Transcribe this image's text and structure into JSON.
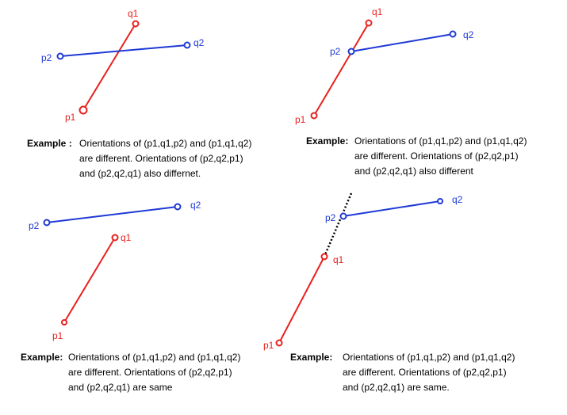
{
  "panels": [
    {
      "labels": {
        "p1": "p1",
        "q1": "q1",
        "p2": "p2",
        "q2": "q2"
      },
      "example_label": "Example :",
      "caption_lines": [
        "Orientations of (p1,q1,p2) and (p1,q1,q2)",
        "are different. Orientations of (p2,q2,p1)",
        "and (p2,q2,q1) also differnet."
      ]
    },
    {
      "labels": {
        "p1": "p1",
        "q1": "q1",
        "p2": "p2",
        "q2": "q2"
      },
      "example_label": "Example:",
      "caption_lines": [
        "Orientations of (p1,q1,p2) and (p1,q1,q2)",
        "are different. Orientations of (p2,q2,p1)",
        "and (p2,q2,q1) also different"
      ]
    },
    {
      "labels": {
        "p1": "p1",
        "q1": "q1",
        "p2": "p2",
        "q2": "q2"
      },
      "example_label": "Example:",
      "caption_lines": [
        "Orientations of (p1,q1,p2) and (p1,q1,q2)",
        "are different. Orientations of (p2,q2,p1)",
        "and (p2,q2,q1) are same"
      ]
    },
    {
      "labels": {
        "p1": "p1",
        "q1": "q1",
        "p2": "p2",
        "q2": "q2"
      },
      "example_label": "Example:",
      "caption_lines": [
        "Orientations of (p1,q1,p2) and (p1,q1,q2)",
        "are different. Orientations of (p2,q2,p1)",
        "and (p2,q2,q1) are same."
      ]
    }
  ],
  "colors": {
    "segment_p1q1": "#e8211f",
    "segment_p2q2": "#1f3ad6",
    "extension": "#000000"
  }
}
